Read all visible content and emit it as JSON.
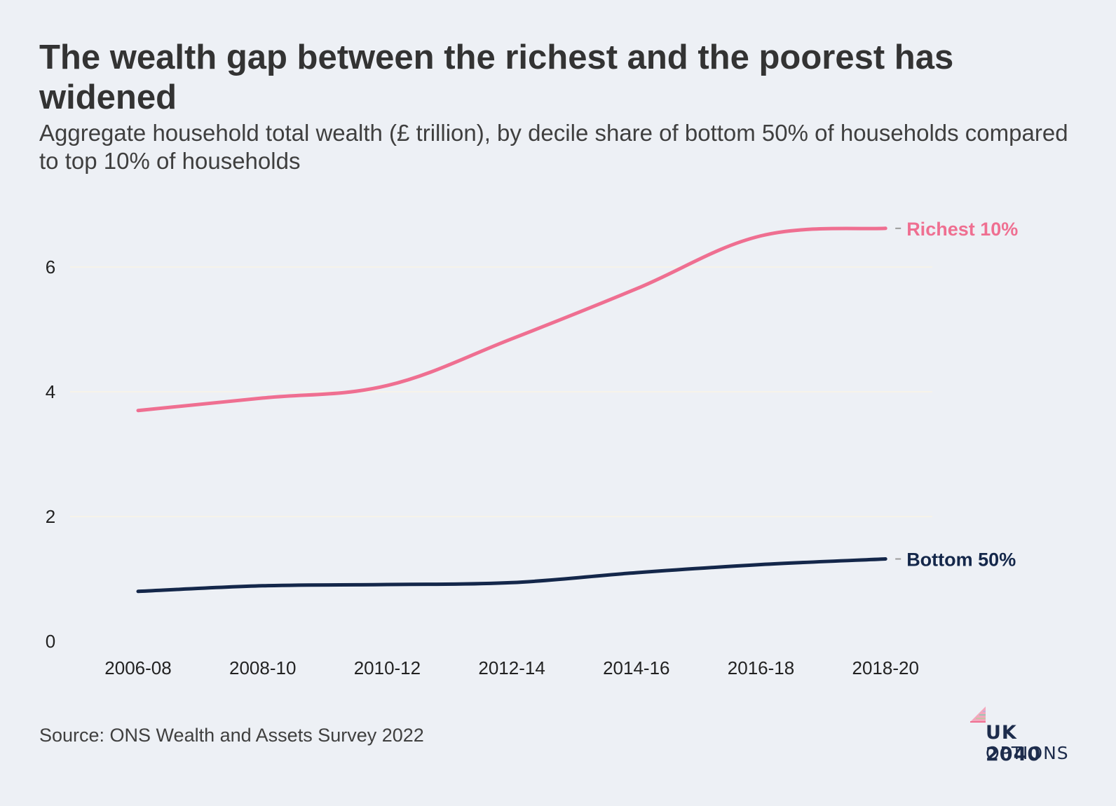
{
  "chart_data": {
    "type": "line",
    "title": "The wealth gap between the richest and the poorest has widened",
    "subtitle": "Aggregate household total wealth (£ trillion), by decile share of bottom 50% of households compared to top 10% of households",
    "xlabel": "",
    "ylabel": "",
    "categories": [
      "2006-08",
      "2008-10",
      "2010-12",
      "2012-14",
      "2014-16",
      "2016-18",
      "2018-20"
    ],
    "series": [
      {
        "name": "Richest 10%",
        "values": [
          3.7,
          3.9,
          4.1,
          4.85,
          5.65,
          6.5,
          6.62
        ],
        "color": "#ef6f91"
      },
      {
        "name": "Bottom 50%",
        "values": [
          0.8,
          0.89,
          0.91,
          0.94,
          1.1,
          1.23,
          1.32
        ],
        "color": "#14274a"
      }
    ],
    "yticks": [
      0,
      2,
      4,
      6
    ],
    "ylim": [
      0,
      7
    ],
    "grid": true,
    "legend": "direct labels at line ends",
    "source": "Source: ONS Wealth and Assets Survey 2022"
  },
  "logo": {
    "line1": "UK 2040",
    "line2": "OPTIONS"
  },
  "colors": {
    "background": "#edf0f5",
    "grid": "#f6f3e9",
    "accent_pink": "#ef6f91",
    "accent_navy": "#14274a"
  }
}
